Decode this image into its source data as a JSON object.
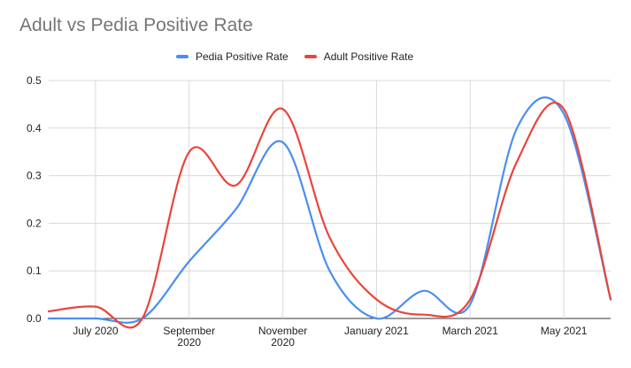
{
  "chart_data": {
    "type": "line",
    "title": "Adult vs Pedia Positive Rate",
    "xlabel": "",
    "ylabel": "",
    "ylim": [
      0,
      0.5
    ],
    "yticks": [
      "0.0",
      "0.1",
      "0.2",
      "0.3",
      "0.4",
      "0.5"
    ],
    "xticks": [
      {
        "month": 1,
        "lines": [
          "July 2020"
        ]
      },
      {
        "month": 3,
        "lines": [
          "September",
          "2020"
        ]
      },
      {
        "month": 5,
        "lines": [
          "November",
          "2020"
        ]
      },
      {
        "month": 7,
        "lines": [
          "January 2021"
        ]
      },
      {
        "month": 9,
        "lines": [
          "March 2021"
        ]
      },
      {
        "month": 11,
        "lines": [
          "May 2021"
        ]
      }
    ],
    "x": [
      0,
      1,
      2,
      3,
      4,
      5,
      6,
      7,
      8,
      9,
      10,
      11,
      12
    ],
    "series": [
      {
        "name": "Pedia Positive Rate",
        "color": "#4a8ef0",
        "values": [
          0.0,
          0.0,
          0.0,
          0.12,
          0.23,
          0.37,
          0.1,
          0.0,
          0.058,
          0.03,
          0.4,
          0.43,
          0.04
        ]
      },
      {
        "name": "Adult Positive Rate",
        "color": "#e8453c",
        "values": [
          0.015,
          0.025,
          0.0,
          0.35,
          0.28,
          0.44,
          0.17,
          0.04,
          0.008,
          0.04,
          0.33,
          0.44,
          0.04
        ]
      }
    ]
  }
}
